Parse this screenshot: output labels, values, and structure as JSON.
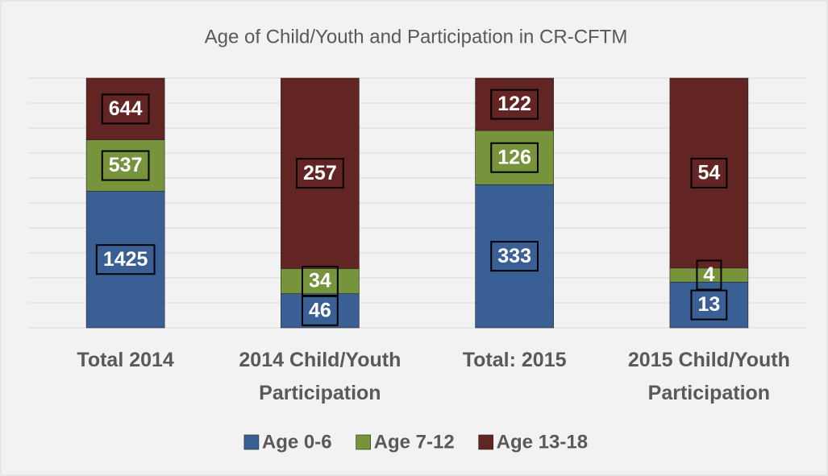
{
  "chart_data": {
    "type": "stacked_bar_100",
    "title": "Age of Child/Youth and Participation in CR-CFTM",
    "categories": [
      "Total 2014",
      "2014 Child/Youth Participation",
      "Total: 2015",
      "2015 Child/Youth Participation"
    ],
    "series": [
      {
        "name": "Age 0-6",
        "color": "#3a5f94",
        "values": [
          1425,
          46,
          333,
          13
        ]
      },
      {
        "name": "Age 7-12",
        "color": "#77933c",
        "values": [
          537,
          34,
          126,
          4
        ]
      },
      {
        "name": "Age 13-18",
        "color": "#632523",
        "values": [
          644,
          257,
          122,
          54
        ]
      }
    ],
    "ylim": [
      0,
      100
    ],
    "yticks": [
      0,
      10,
      20,
      30,
      40,
      50,
      60,
      70,
      80,
      90,
      100
    ],
    "tick_labels": false,
    "grid": true,
    "legend": "bottom"
  }
}
